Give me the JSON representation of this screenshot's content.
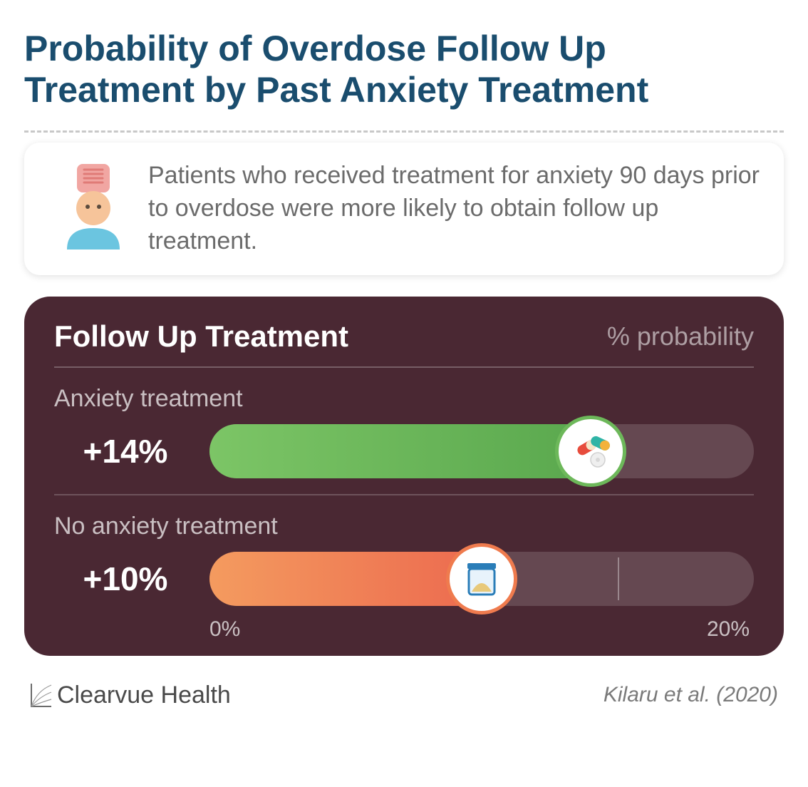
{
  "title": "Probability of Overdose Follow Up Treatment by Past Anxiety Treatment",
  "title_color": "#1a4d6e",
  "title_fontsize": 50,
  "summary": {
    "text": "Patients who received treatment for anxiety 90 days prior to overdose were more likely to obtain follow up treatment.",
    "text_color": "#6b6b6b",
    "text_fontsize": 34,
    "icon": "anxiety-head"
  },
  "panel": {
    "title": "Follow Up Treatment",
    "subtitle": "% probability",
    "background_color": "#4a2833",
    "bar_track_color": "rgba(255,255,255,0.15)",
    "axis": {
      "min": 0,
      "max": 20,
      "min_label": "0%",
      "max_label": "20%"
    },
    "rows": [
      {
        "label": "Anxiety treatment",
        "value_text": "+14%",
        "value": 14,
        "fill_gradient_from": "#7cc566",
        "fill_gradient_to": "#5aa84e",
        "knob_border_color": "#6db85a",
        "knob_icon": "pills-icon"
      },
      {
        "label": "No anxiety treatment",
        "value_text": "+10%",
        "value": 10,
        "fill_gradient_from": "#f49b5f",
        "fill_gradient_to": "#ec6a4f",
        "knob_border_color": "#ef7b4e",
        "knob_icon": "powder-bag-icon"
      }
    ]
  },
  "footer": {
    "brand": "Clearvue Health",
    "citation": "Kilaru et al. (2020)"
  }
}
